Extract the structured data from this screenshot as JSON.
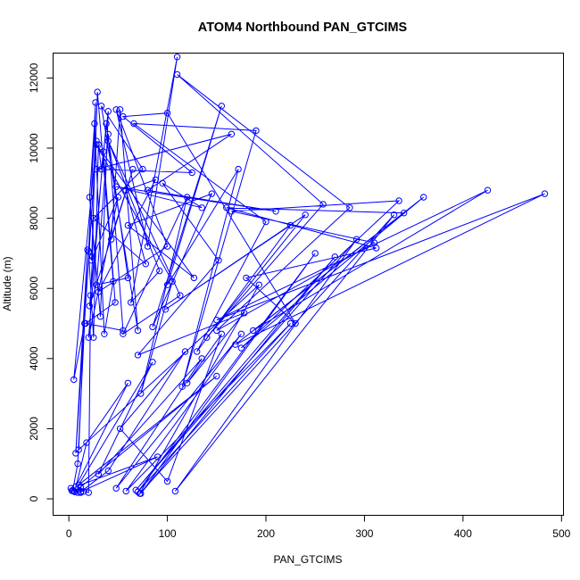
{
  "chart_data": {
    "type": "line",
    "title": "ATOM4 Northbound PAN_GTCIMS",
    "xlabel": "PAN_GTCIMS",
    "ylabel": "Altitude (m)",
    "xlim": [
      -16,
      502
    ],
    "ylim": [
      -470,
      12710
    ],
    "x_ticks": [
      0,
      100,
      200,
      300,
      400,
      500
    ],
    "x_tick_labels": [
      "0",
      "100",
      "200",
      "300",
      "400",
      "500"
    ],
    "y_ticks": [
      0,
      2000,
      4000,
      6000,
      8000,
      10000,
      12000
    ],
    "y_tick_labels": [
      "0",
      "2000",
      "4000",
      "6000",
      "8000",
      "10000",
      "12000"
    ],
    "grid": false,
    "legend": "none",
    "marker": "open-circle",
    "color": "#0000ff",
    "series": [
      {
        "points": [
          [
            2,
            300
          ],
          [
            5,
            220
          ],
          [
            9,
            180
          ],
          [
            12,
            330
          ],
          [
            15,
            210
          ],
          [
            20,
            180
          ],
          [
            22,
            5800
          ],
          [
            24,
            6900
          ],
          [
            27,
            11300
          ],
          [
            20,
            7050
          ],
          [
            25,
            4600
          ],
          [
            30,
            10100
          ],
          [
            33,
            9400
          ],
          [
            40,
            11050
          ],
          [
            32,
            5200
          ],
          [
            21,
            8600
          ],
          [
            26,
            10700
          ],
          [
            36,
            4700
          ],
          [
            45,
            6200
          ],
          [
            29,
            11600
          ],
          [
            23,
            6800
          ],
          [
            50,
            8600
          ],
          [
            20,
            4600
          ],
          [
            35,
            9900
          ],
          [
            47,
            5600
          ],
          [
            17,
            5000
          ],
          [
            55,
            4800
          ],
          [
            40,
            10400
          ],
          [
            28,
            6100
          ],
          [
            60,
            6300
          ],
          [
            38,
            10700
          ],
          [
            21,
            5500
          ],
          [
            65,
            9400
          ],
          [
            43,
            7400
          ],
          [
            52,
            11100
          ],
          [
            70,
            4800
          ],
          [
            33,
            11200
          ],
          [
            75,
            9400
          ],
          [
            25,
            8000
          ],
          [
            78,
            6700
          ],
          [
            58,
            8800
          ],
          [
            88,
            9100
          ],
          [
            30,
            5900
          ],
          [
            100,
            7200
          ],
          [
            48,
            11100
          ],
          [
            80,
            7200
          ],
          [
            110,
            12600
          ],
          [
            63,
            5600
          ],
          [
            92,
            6500
          ],
          [
            40,
            10200
          ],
          [
            113,
            5800
          ],
          [
            55,
            4700
          ],
          [
            120,
            8600
          ],
          [
            73,
            3000
          ],
          [
            105,
            6200
          ],
          [
            28,
            10100
          ],
          [
            127,
            6300
          ],
          [
            60,
            7800
          ],
          [
            145,
            8700
          ],
          [
            85,
            4900
          ],
          [
            155,
            11200
          ],
          [
            100,
            6100
          ],
          [
            172,
            9400
          ],
          [
            115,
            3200
          ],
          [
            190,
            10500
          ],
          [
            66,
            10700
          ],
          [
            200,
            7900
          ],
          [
            130,
            4200
          ],
          [
            225,
            7800
          ],
          [
            98,
            5400
          ],
          [
            240,
            8100
          ],
          [
            140,
            4600
          ],
          [
            258,
            8400
          ],
          [
            110,
            12100
          ],
          [
            285,
            8300
          ],
          [
            150,
            4800
          ],
          [
            310,
            7300
          ],
          [
            165,
            8200
          ],
          [
            335,
            8500
          ],
          [
            175,
            4300
          ],
          [
            360,
            8600
          ],
          [
            187,
            4800
          ],
          [
            425,
            8800
          ],
          [
            150,
            5100
          ],
          [
            483,
            8700
          ],
          [
            169,
            4400
          ],
          [
            340,
            8150
          ],
          [
            160,
            8300
          ],
          [
            312,
            7150
          ],
          [
            180,
            6300
          ],
          [
            230,
            5000
          ],
          [
            100,
            11000
          ],
          [
            55,
            10900
          ],
          [
            125,
            9300
          ],
          [
            28,
            9400
          ],
          [
            165,
            10400
          ],
          [
            80,
            8800
          ],
          [
            210,
            8200
          ],
          [
            48,
            8900
          ],
          [
            135,
            8300
          ],
          [
            95,
            9000
          ],
          [
            152,
            6800
          ],
          [
            70,
            4100
          ],
          [
            178,
            5300
          ],
          [
            120,
            3300
          ],
          [
            155,
            4700
          ],
          [
            100,
            500
          ],
          [
            52,
            2000
          ],
          [
            118,
            4200
          ],
          [
            40,
            800
          ],
          [
            12,
            200
          ],
          [
            90,
            1200
          ],
          [
            7,
            350
          ],
          [
            60,
            3300
          ],
          [
            18,
            1600
          ],
          [
            6,
            200
          ],
          [
            150,
            3500
          ],
          [
            10,
            400
          ],
          [
            85,
            3900
          ],
          [
            30,
            700
          ],
          [
            135,
            4000
          ],
          [
            48,
            300
          ],
          [
            175,
            4700
          ],
          [
            58,
            220
          ],
          [
            225,
            5000
          ],
          [
            70,
            200
          ],
          [
            250,
            7000
          ],
          [
            73,
            150
          ],
          [
            270,
            6900
          ],
          [
            68,
            250
          ],
          [
            292,
            7400
          ],
          [
            108,
            220
          ],
          [
            330,
            8100
          ],
          [
            72,
            150
          ],
          [
            193,
            6100
          ],
          [
            10,
            1400
          ],
          [
            19,
            7100
          ],
          [
            7,
            1300
          ],
          [
            28,
            10200
          ],
          [
            5,
            3400
          ],
          [
            16,
            5000
          ],
          [
            9,
            1000
          ],
          [
            4,
            250
          ],
          [
            12,
            180
          ],
          [
            3,
            230
          ]
        ]
      }
    ]
  }
}
